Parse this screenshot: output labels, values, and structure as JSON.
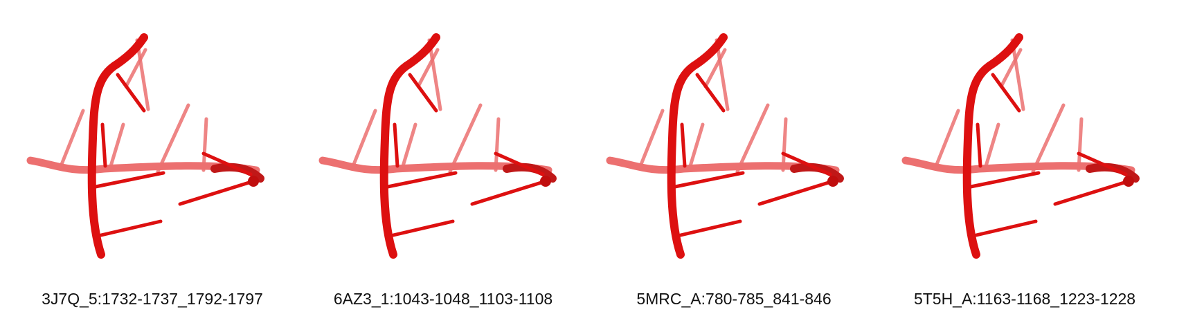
{
  "colors": {
    "strand_front": "#dd1010",
    "strand_back": "#ec7070",
    "background": "#ffffff"
  },
  "panels": [
    {
      "caption": "3J7Q_5:1732-1737_1792-1797"
    },
    {
      "caption": "6AZ3_1:1043-1048_1103-1108"
    },
    {
      "caption": "5MRC_A:780-785_841-846"
    },
    {
      "caption": "5T5H_A:1163-1168_1223-1228"
    }
  ]
}
